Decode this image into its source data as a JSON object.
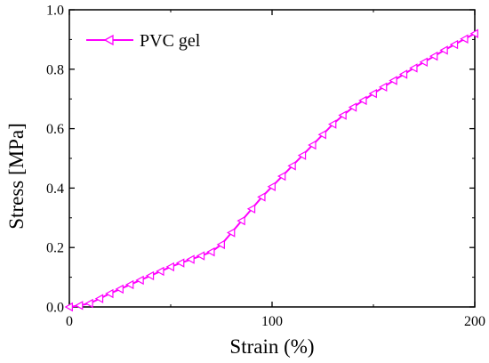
{
  "chart_data": {
    "type": "line",
    "xlabel": "Strain (%)",
    "ylabel": "Stress [MPa]",
    "xlim": [
      0,
      200
    ],
    "ylim": [
      0,
      1.0
    ],
    "x_ticks": [
      "0",
      "100",
      "200"
    ],
    "y_ticks": [
      "0.0",
      "0.2",
      "0.4",
      "0.6",
      "0.8",
      "1.0"
    ],
    "grid": false,
    "legend_position": "top-left",
    "series": [
      {
        "name": "PVC gel",
        "color": "#ff00ff",
        "marker": "left-triangle",
        "x": [
          0,
          5,
          10,
          15,
          20,
          25,
          30,
          35,
          40,
          45,
          50,
          55,
          60,
          65,
          70,
          75,
          80,
          85,
          90,
          95,
          100,
          105,
          110,
          115,
          120,
          125,
          130,
          135,
          140,
          145,
          150,
          155,
          160,
          165,
          170,
          175,
          180,
          185,
          190,
          195,
          200
        ],
        "y": [
          0.0,
          0.005,
          0.012,
          0.028,
          0.045,
          0.06,
          0.075,
          0.09,
          0.105,
          0.12,
          0.135,
          0.148,
          0.16,
          0.172,
          0.185,
          0.21,
          0.25,
          0.29,
          0.33,
          0.37,
          0.405,
          0.44,
          0.475,
          0.51,
          0.545,
          0.58,
          0.615,
          0.645,
          0.672,
          0.695,
          0.718,
          0.74,
          0.762,
          0.783,
          0.804,
          0.824,
          0.844,
          0.864,
          0.883,
          0.902,
          0.92
        ]
      }
    ]
  }
}
